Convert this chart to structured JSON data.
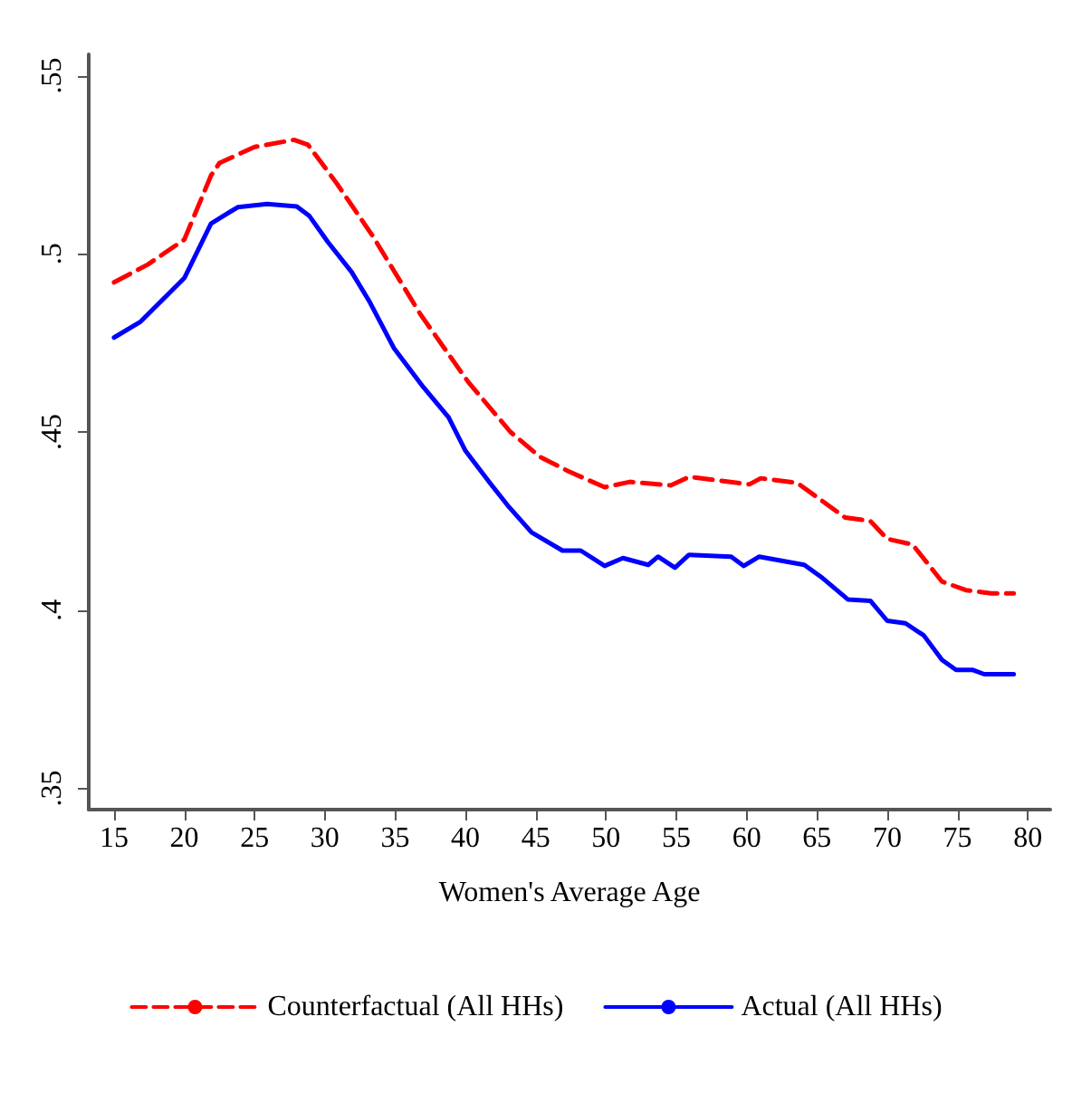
{
  "chart_data": {
    "type": "line",
    "xlabel": "Women's Average Age",
    "xlim": [
      13.2,
      81.6
    ],
    "xticks": [
      15,
      20,
      25,
      30,
      35,
      40,
      45,
      50,
      55,
      60,
      65,
      70,
      75,
      80
    ],
    "ylim": [
      0.344,
      0.556
    ],
    "yticks": [
      {
        "value": 0.35,
        "label": ".35"
      },
      {
        "value": 0.4,
        "label": ".4"
      },
      {
        "value": 0.45,
        "label": ".45"
      },
      {
        "value": 0.5,
        "label": ".5"
      },
      {
        "value": 0.55,
        "label": ".55"
      }
    ],
    "grid": false,
    "legend": "bottom",
    "marker": "none",
    "series": [
      {
        "name": "Counterfactual (All HHs)",
        "color": "#ff0000",
        "line_style": "dashed",
        "x": [
          15,
          17.4,
          20,
          21.9,
          22.5,
          25,
          27.8,
          28.8,
          30.8,
          33.4,
          36.8,
          40.2,
          43.2,
          45.3,
          47.3,
          49.9,
          51.7,
          54.6,
          55.9,
          60.2,
          61,
          63.6,
          64.9,
          67,
          68.8,
          70,
          71.8,
          73.9,
          75.6,
          77.4,
          79
        ],
        "values": [
          0.492,
          0.497,
          0.504,
          0.522,
          0.5255,
          0.53,
          0.532,
          0.5306,
          0.52,
          0.505,
          0.483,
          0.464,
          0.45,
          0.443,
          0.439,
          0.4345,
          0.436,
          0.435,
          0.4374,
          0.4353,
          0.437,
          0.4357,
          0.432,
          0.426,
          0.425,
          0.42,
          0.4184,
          0.408,
          0.4056,
          0.4047,
          0.4047
        ]
      },
      {
        "name": "Actual (All HHs)",
        "color": "#0000ff",
        "line_style": "solid",
        "x": [
          15,
          16.9,
          20,
          21.9,
          23.8,
          25.9,
          28,
          28.9,
          30.2,
          31.9,
          33.2,
          34.9,
          37,
          38.8,
          40,
          41.8,
          43,
          44.7,
          46.9,
          48.2,
          49.9,
          51.2,
          53,
          53.7,
          54.9,
          55.9,
          58.9,
          59.8,
          60.9,
          64.1,
          65.4,
          67.2,
          68.8,
          70,
          71.3,
          72.6,
          73.9,
          74.9,
          76.1,
          76.9,
          79
        ],
        "values": [
          0.4765,
          0.481,
          0.4932,
          0.5085,
          0.5131,
          0.514,
          0.5133,
          0.5106,
          0.5034,
          0.4949,
          0.4864,
          0.4736,
          0.4626,
          0.4541,
          0.4447,
          0.4354,
          0.4294,
          0.4218,
          0.4167,
          0.4167,
          0.4124,
          0.4146,
          0.4127,
          0.415,
          0.4119,
          0.4155,
          0.415,
          0.4124,
          0.415,
          0.4127,
          0.409,
          0.403,
          0.4026,
          0.397,
          0.3963,
          0.3929,
          0.386,
          0.3832,
          0.3832,
          0.382,
          0.382
        ]
      }
    ]
  }
}
